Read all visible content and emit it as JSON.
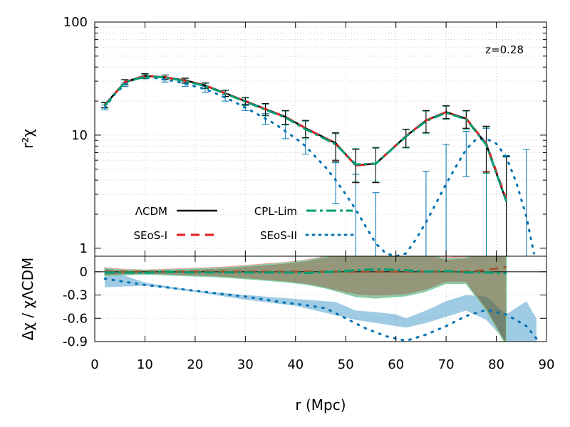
{
  "chart_data": [
    {
      "panel": "top",
      "type": "line",
      "xlabel": "r (Mpc)",
      "ylabel": "r²χ",
      "yscale": "log",
      "xlim": [
        0,
        90
      ],
      "ylim": [
        0.85,
        100
      ],
      "x_ticks": [
        "0",
        "10",
        "20",
        "30",
        "40",
        "50",
        "60",
        "70",
        "80",
        "90"
      ],
      "y_ticks": [
        "1",
        "10",
        "100"
      ],
      "annotation": "z=0.28",
      "grid": true,
      "legend": [
        "ΛCDM",
        "CPL-Lim",
        "SEoS-I",
        "SEoS-II"
      ],
      "colors": {
        "lcdm": "#000000",
        "cpl": "#009e73",
        "seos1": "#e41a1c",
        "seos2": "#0072b2"
      },
      "series": [
        {
          "name": "ΛCDM",
          "x": [
            2,
            6,
            10,
            14,
            18,
            22,
            26,
            30,
            34,
            38,
            42,
            48,
            52,
            56,
            62,
            66,
            70,
            74,
            78,
            82
          ],
          "y": [
            18.5,
            29.5,
            33.5,
            32.5,
            30.5,
            27.5,
            23.5,
            20,
            17,
            14.5,
            11.5,
            8.5,
            5.4,
            5.6,
            9.8,
            13.5,
            16,
            14,
            8.3,
            2.6
          ]
        },
        {
          "name": "CPL-Lim",
          "x": [
            2,
            6,
            10,
            14,
            18,
            22,
            26,
            30,
            34,
            38,
            42,
            48,
            52,
            56,
            62,
            66,
            70,
            74,
            78,
            82
          ],
          "y": [
            18.3,
            29.3,
            33,
            32.5,
            30,
            27.2,
            23.3,
            19.8,
            16.8,
            14.3,
            11.3,
            8.3,
            5.5,
            5.6,
            9.7,
            13.3,
            15.8,
            13.8,
            8.2,
            2.6
          ]
        },
        {
          "name": "SEoS-I",
          "x": [
            2,
            6,
            10,
            14,
            18,
            22,
            26,
            30,
            34,
            38,
            42,
            48,
            52,
            56,
            62,
            66,
            70,
            74,
            78,
            82
          ],
          "y": [
            18.5,
            29.4,
            33.5,
            32.5,
            30.4,
            27.5,
            23.4,
            20,
            17,
            14.5,
            11.5,
            8.4,
            5.4,
            5.6,
            9.8,
            13.5,
            16,
            14,
            8.4,
            2.7
          ]
        },
        {
          "name": "SEoS-II",
          "x": [
            2,
            4,
            6,
            8,
            10,
            12,
            14,
            16,
            18,
            20,
            22,
            24,
            26,
            28,
            30,
            32,
            34,
            36,
            38,
            40,
            42,
            44,
            46,
            48,
            50,
            52,
            54,
            56,
            58,
            60,
            62,
            64,
            66,
            68,
            70,
            72,
            74,
            76,
            78,
            80,
            82,
            84,
            86,
            87.5
          ],
          "y": [
            17.5,
            23,
            28,
            31.5,
            32.5,
            32,
            31,
            30,
            28.5,
            27,
            25.5,
            23.5,
            21.5,
            19.5,
            17.5,
            15.7,
            14,
            12.5,
            10.8,
            9.4,
            8,
            6.4,
            5.2,
            4,
            3,
            2.2,
            1.55,
            1.1,
            0.9,
            0.85,
            0.9,
            1.2,
            1.7,
            2.5,
            3.7,
            5.3,
            7.5,
            9.2,
            9.3,
            8.4,
            6.4,
            3.8,
            1.9,
            0.9
          ]
        }
      ],
      "errorbars": {
        "lcdm": {
          "x": [
            2,
            6,
            10,
            14,
            18,
            22,
            26,
            30,
            34,
            38,
            42,
            48,
            52,
            56,
            62,
            66,
            70,
            74,
            78,
            82
          ],
          "y": [
            18.5,
            29.5,
            33.5,
            32.5,
            30.5,
            27.5,
            23.5,
            20,
            17,
            14.5,
            11.5,
            8.5,
            5.4,
            5.6,
            9.8,
            13.5,
            16,
            14,
            8.3,
            2.6
          ],
          "lo": [
            17.5,
            28,
            32,
            31,
            29,
            26,
            22,
            18.5,
            15,
            12.5,
            9.5,
            6,
            3.8,
            3.8,
            7.8,
            10.5,
            14,
            11.5,
            4.7,
            0.85
          ],
          "hi": [
            19.5,
            31,
            35,
            34,
            32,
            29,
            25,
            21.5,
            19,
            16.5,
            13.5,
            10.5,
            7.5,
            7.7,
            11.3,
            16.5,
            18.2,
            16.5,
            12,
            6.5
          ]
        },
        "cpl": {
          "x": [
            2,
            6,
            10,
            14,
            18,
            22,
            26,
            30,
            34,
            38,
            42,
            48,
            52,
            56,
            62,
            66,
            70,
            74,
            78,
            82
          ],
          "y": [
            18.3,
            29.3,
            33,
            32.5,
            30,
            27.2,
            23.3,
            19.8,
            16.8,
            14.3,
            11.3,
            8.3,
            5.5,
            5.6,
            9.7,
            13.3,
            15.8,
            13.8,
            8.2,
            2.6
          ],
          "lo": [
            17.3,
            27.8,
            31.5,
            31,
            28.5,
            25.7,
            21.8,
            18.3,
            14.8,
            12.3,
            9.3,
            5.8,
            3.9,
            3.9,
            7.7,
            10.3,
            13.8,
            11.3,
            4.6,
            0.85
          ],
          "hi": [
            19.3,
            30.8,
            34.5,
            34,
            31.5,
            28.7,
            24.8,
            21.3,
            18.8,
            16.3,
            13.3,
            10.3,
            7.6,
            7.8,
            11.2,
            16.3,
            18,
            16.3,
            11.8,
            6.4
          ]
        },
        "seos1": {
          "x": [
            2,
            6,
            10,
            14,
            18,
            22,
            26,
            30,
            34,
            38,
            42,
            48,
            52,
            56,
            62,
            66,
            70,
            74,
            78,
            82
          ],
          "y": [
            18.5,
            29.4,
            33.5,
            32.5,
            30.4,
            27.5,
            23.4,
            20,
            17,
            14.5,
            11.5,
            8.4,
            5.4,
            5.6,
            9.8,
            13.5,
            16,
            14,
            8.4,
            2.7
          ],
          "lo": [
            17.5,
            27.9,
            32,
            31,
            28.9,
            26,
            21.9,
            18.5,
            15,
            12.5,
            9.5,
            5.9,
            3.8,
            3.8,
            7.8,
            10.5,
            14,
            11.5,
            4.8,
            0.85
          ],
          "hi": [
            19.5,
            30.9,
            35,
            34,
            31.9,
            29,
            24.9,
            21.5,
            19,
            16.5,
            13.5,
            10.4,
            7.5,
            7.7,
            11.3,
            16.5,
            18.2,
            16.5,
            12,
            6.5
          ]
        },
        "seos2": {
          "x": [
            2,
            6,
            10,
            14,
            18,
            22,
            26,
            30,
            34,
            38,
            42,
            48,
            52,
            56,
            62,
            66,
            70,
            74,
            78,
            82,
            86
          ],
          "y": [
            17.5,
            28,
            32.5,
            31,
            28.5,
            25.5,
            21.5,
            17.5,
            14,
            10.8,
            8,
            4,
            2.2,
            1.1,
            0.9,
            1.7,
            3.7,
            7.5,
            9.3,
            6.4,
            1.9
          ],
          "lo": [
            16.7,
            27,
            31.5,
            29.5,
            27,
            24,
            20,
            16.5,
            12.5,
            9.3,
            6.8,
            2.5,
            0.85,
            0.85,
            0.85,
            0.85,
            0.85,
            4.3,
            0.85,
            0.85,
            0.85
          ],
          "hi": [
            18.5,
            29,
            33.5,
            32,
            30,
            27,
            23,
            18.8,
            15.5,
            12.5,
            9.5,
            5.7,
            4.5,
            3.1,
            0.85,
            4.8,
            8.3,
            10.8,
            11.5,
            6.6,
            7.5
          ]
        }
      }
    },
    {
      "panel": "bottom",
      "type": "area",
      "xlabel": "r (Mpc)",
      "ylabel": "Δχ / χΛCDM",
      "xlim": [
        0,
        90
      ],
      "ylim": [
        -0.9,
        0.2
      ],
      "x_ticks": [
        "0",
        "10",
        "20",
        "30",
        "40",
        "50",
        "60",
        "70",
        "80",
        "90"
      ],
      "y_ticks": [
        "0",
        "-0.3",
        "-0.6",
        "-0.9"
      ],
      "zero_line": true,
      "grid": true,
      "series": [
        {
          "name": "CPL-Lim",
          "x": [
            2,
            6,
            10,
            14,
            18,
            22,
            26,
            30,
            34,
            38,
            42,
            48,
            52,
            56,
            62,
            66,
            70,
            74,
            78,
            82
          ],
          "y": [
            -0.01,
            -0.01,
            -0.015,
            0,
            -0.01,
            -0.01,
            -0.01,
            -0.01,
            -0.01,
            -0.01,
            -0.015,
            0,
            0.02,
            0.03,
            0.02,
            0,
            0.01,
            -0.01,
            -0.01,
            -0.02
          ]
        },
        {
          "name": "SEoS-I",
          "x": [
            2,
            6,
            10,
            14,
            18,
            22,
            26,
            30,
            34,
            38,
            42,
            48,
            52,
            56,
            62,
            66,
            70,
            74,
            78,
            82
          ],
          "y": [
            0,
            0,
            0,
            0,
            0,
            0,
            0,
            0,
            0,
            0,
            0,
            0,
            0,
            0,
            0,
            0,
            0,
            0,
            0.02,
            0.06
          ]
        },
        {
          "name": "SEoS-II",
          "x": [
            2,
            6,
            10,
            14,
            18,
            22,
            26,
            30,
            34,
            38,
            42,
            46,
            50,
            54,
            58,
            62,
            66,
            70,
            74,
            78,
            82,
            86,
            88
          ],
          "y": [
            -0.09,
            -0.13,
            -0.17,
            -0.2,
            -0.23,
            -0.26,
            -0.29,
            -0.32,
            -0.36,
            -0.4,
            -0.43,
            -0.47,
            -0.6,
            -0.73,
            -0.83,
            -0.89,
            -0.81,
            -0.7,
            -0.57,
            -0.49,
            -0.55,
            -0.7,
            -0.86
          ]
        }
      ],
      "bands": {
        "seos1": {
          "x": [
            2,
            6,
            10,
            14,
            18,
            22,
            26,
            30,
            34,
            38,
            42,
            46,
            52,
            56,
            62,
            66,
            70,
            74,
            78,
            82
          ],
          "lo": [
            -0.04,
            -0.03,
            -0.02,
            -0.03,
            -0.04,
            -0.05,
            -0.06,
            -0.08,
            -0.1,
            -0.12,
            -0.15,
            -0.2,
            -0.28,
            -0.3,
            -0.28,
            -0.22,
            -0.12,
            -0.12,
            -0.48,
            -0.95
          ],
          "hi": [
            0.05,
            0.03,
            0.02,
            0.03,
            0.04,
            0.05,
            0.06,
            0.08,
            0.1,
            0.12,
            0.15,
            0.2,
            0.3,
            0.32,
            0.3,
            0.26,
            0.18,
            0.2,
            0.3,
            0.35
          ]
        },
        "cpl": {
          "x": [
            2,
            6,
            10,
            14,
            18,
            22,
            26,
            30,
            34,
            38,
            42,
            46,
            52,
            56,
            62,
            66,
            70,
            74,
            78,
            82
          ],
          "lo": [
            -0.05,
            -0.04,
            -0.03,
            -0.04,
            -0.05,
            -0.06,
            -0.07,
            -0.09,
            -0.11,
            -0.13,
            -0.16,
            -0.21,
            -0.32,
            -0.34,
            -0.31,
            -0.25,
            -0.15,
            -0.15,
            -0.5,
            -0.95
          ],
          "hi": [
            0.04,
            0.02,
            0.02,
            0.02,
            0.03,
            0.04,
            0.05,
            0.07,
            0.09,
            0.11,
            0.14,
            0.19,
            0.28,
            0.3,
            0.28,
            0.24,
            0.16,
            0.18,
            0.28,
            0.32
          ]
        },
        "seos2": {
          "x": [
            2,
            10,
            20,
            30,
            40,
            44,
            48,
            52,
            56,
            60,
            62,
            66,
            70,
            74,
            78,
            82,
            86,
            88
          ],
          "lo": [
            -0.2,
            -0.18,
            -0.26,
            -0.36,
            -0.44,
            -0.5,
            -0.56,
            -0.62,
            -0.66,
            -0.7,
            -0.72,
            -0.66,
            -0.58,
            -0.5,
            -0.62,
            -0.9,
            -0.95,
            -0.95
          ],
          "hi": [
            0.04,
            -0.14,
            -0.24,
            -0.3,
            -0.35,
            -0.37,
            -0.39,
            -0.5,
            -0.52,
            -0.55,
            -0.6,
            -0.5,
            -0.38,
            -0.3,
            -0.32,
            -0.55,
            -0.38,
            -0.6
          ]
        }
      }
    }
  ]
}
